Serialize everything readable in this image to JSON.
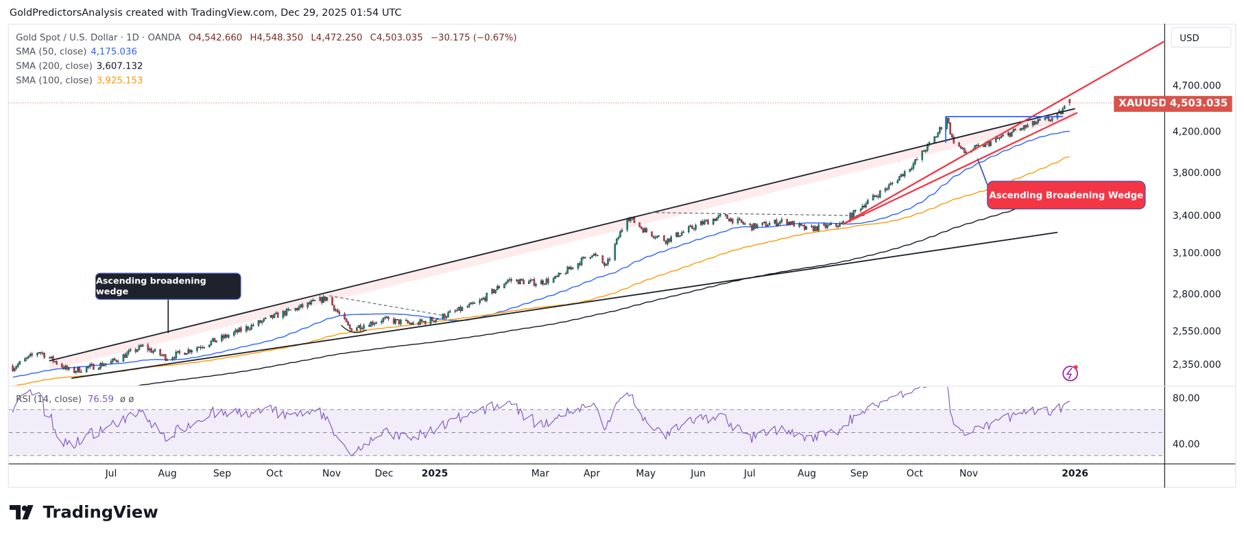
{
  "header": {
    "text": "GoldPredictorsAnalysis created with TradingView.com, Dec 29, 2025 01:54 UTC"
  },
  "legend": {
    "symbol": "Gold Spot / U.S. Dollar · 1D · OANDA",
    "open": "O4,542.660",
    "high": "H4,548.350",
    "low": "L4,472.250",
    "close": "C4,503.035",
    "change": "−30.175 (−0.67%)",
    "sma50_label": "SMA (50, close)",
    "sma50_value": "4,175.036",
    "sma200_label": "SMA (200, close)",
    "sma200_value": "3,607.132",
    "sma100_label": "SMA (100, close)",
    "sma100_value": "3,925.153"
  },
  "price_axis": {
    "currency": "USD",
    "labels": [
      "4,700.000",
      "4,200.000",
      "3,800.000",
      "3,400.000",
      "3,100.000",
      "2,800.000",
      "2,550.000",
      "2,350.000"
    ],
    "symbol": "XAUUSD",
    "last_price": "4,503.035"
  },
  "rsi": {
    "label": "RSI (14, close)",
    "value": "76.59",
    "extra": "ø ø",
    "axis_labels": [
      "80.00",
      "40.00"
    ]
  },
  "time_axis": {
    "labels": [
      "Jul",
      "Aug",
      "Sep",
      "Oct",
      "Nov",
      "Dec",
      "2025",
      "Mar",
      "Apr",
      "May",
      "Jun",
      "Jul",
      "Aug",
      "Sep",
      "Oct",
      "Nov",
      "2026"
    ]
  },
  "annotations": {
    "left_callout": "Ascending broadening wedge",
    "right_callout": "Ascending Broadening Wedge"
  },
  "logo": {
    "text": "TradingView"
  },
  "colors": {
    "up": "#089981",
    "down": "#f23645",
    "sma50": "#2962ff",
    "sma100": "#ff9800",
    "sma200": "#131722",
    "rsi": "#7e57c2",
    "wedge_red": "#f23645",
    "last_price": "#d9534a"
  },
  "chart_data": {
    "type": "candlestick",
    "title": "Gold Spot / U.S. Dollar · 1D · OANDA",
    "scale": "log",
    "ylim": [
      2200,
      5000
    ],
    "key_closes": [
      [
        "2024-05-04",
        2320
      ],
      [
        "2024-05-21",
        2430
      ],
      [
        "2024-06-08",
        2310
      ],
      [
        "2024-07-01",
        2365
      ],
      [
        "2024-07-19",
        2460
      ],
      [
        "2024-08-02",
        2390
      ],
      [
        "2024-09-02",
        2510
      ],
      [
        "2024-10-02",
        2650
      ],
      [
        "2024-11-01",
        2775
      ],
      [
        "2024-11-14",
        2570
      ],
      [
        "2024-12-03",
        2630
      ],
      [
        "2024-12-20",
        2600
      ],
      [
        "2025-01-01",
        2630
      ],
      [
        "2025-01-26",
        2740
      ],
      [
        "2025-02-12",
        2900
      ],
      [
        "2025-03-01",
        2880
      ],
      [
        "2025-03-11",
        2910
      ],
      [
        "2025-04-01",
        3100
      ],
      [
        "2025-04-09",
        3000
      ],
      [
        "2025-04-21",
        3400
      ],
      [
        "2025-05-01",
        3280
      ],
      [
        "2025-05-13",
        3200
      ],
      [
        "2025-06-01",
        3330
      ],
      [
        "2025-06-14",
        3400
      ],
      [
        "2025-07-01",
        3310
      ],
      [
        "2025-07-20",
        3360
      ],
      [
        "2025-08-01",
        3290
      ],
      [
        "2025-08-21",
        3330
      ],
      [
        "2025-09-01",
        3480
      ],
      [
        "2025-09-17",
        3660
      ],
      [
        "2025-10-01",
        3870
      ],
      [
        "2025-10-14",
        4150
      ],
      [
        "2025-10-20",
        4350
      ],
      [
        "2025-10-23",
        4120
      ],
      [
        "2025-10-30",
        3980
      ],
      [
        "2025-11-15",
        4090
      ],
      [
        "2025-11-28",
        4200
      ],
      [
        "2025-12-12",
        4300
      ],
      [
        "2025-12-21",
        4340
      ],
      [
        "2025-12-29",
        4503
      ]
    ],
    "last_bar": {
      "open": 4542.66,
      "high": 4548.35,
      "low": 4472.25,
      "close": 4503.035
    },
    "sma": {
      "50": 4175.036,
      "100": 3925.153,
      "200": 3607.132
    },
    "rsi_last": 76.59,
    "rsi_levels": [
      70,
      50,
      30
    ]
  }
}
